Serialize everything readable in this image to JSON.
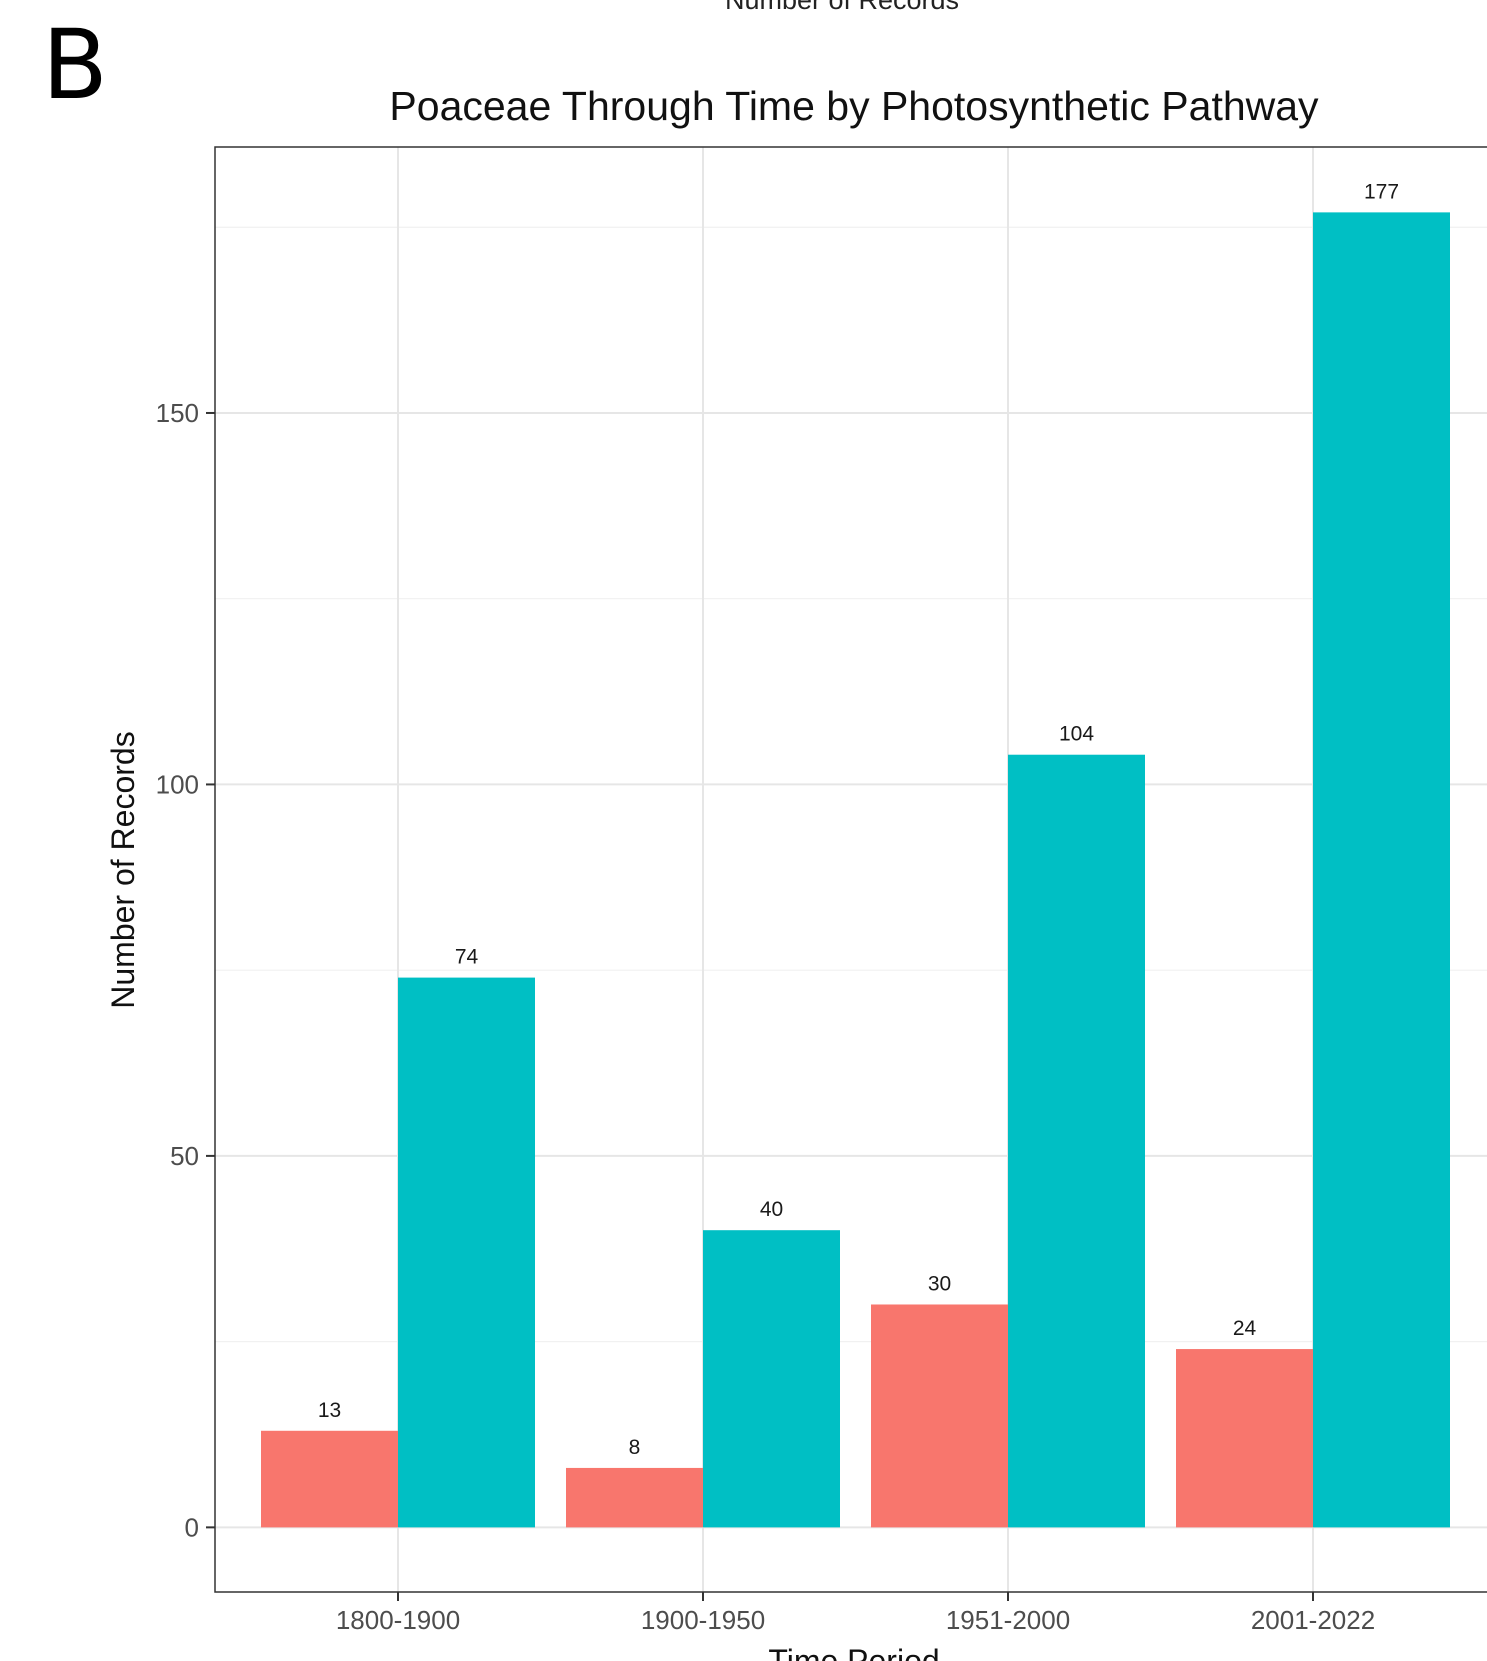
{
  "panel_letter": "B",
  "top_cutoff_text": "Number of Records",
  "chart_data": {
    "type": "bar",
    "title": "Poaceae Through Time by Photosynthetic Pathway",
    "xlabel": "Time Period",
    "ylabel": "Number of Records",
    "categories": [
      "1800-1900",
      "1900-1950",
      "1951-2000",
      "2001-2022"
    ],
    "series": [
      {
        "values": [
          13,
          8,
          30,
          24
        ],
        "color": "#F8766D"
      },
      {
        "values": [
          74,
          40,
          104,
          177
        ],
        "color": "#00BFC4"
      }
    ],
    "yticks": [
      0,
      50,
      100,
      150
    ],
    "ylim": [
      -8.7,
      185.8
    ],
    "grid": true,
    "legend": "none"
  }
}
